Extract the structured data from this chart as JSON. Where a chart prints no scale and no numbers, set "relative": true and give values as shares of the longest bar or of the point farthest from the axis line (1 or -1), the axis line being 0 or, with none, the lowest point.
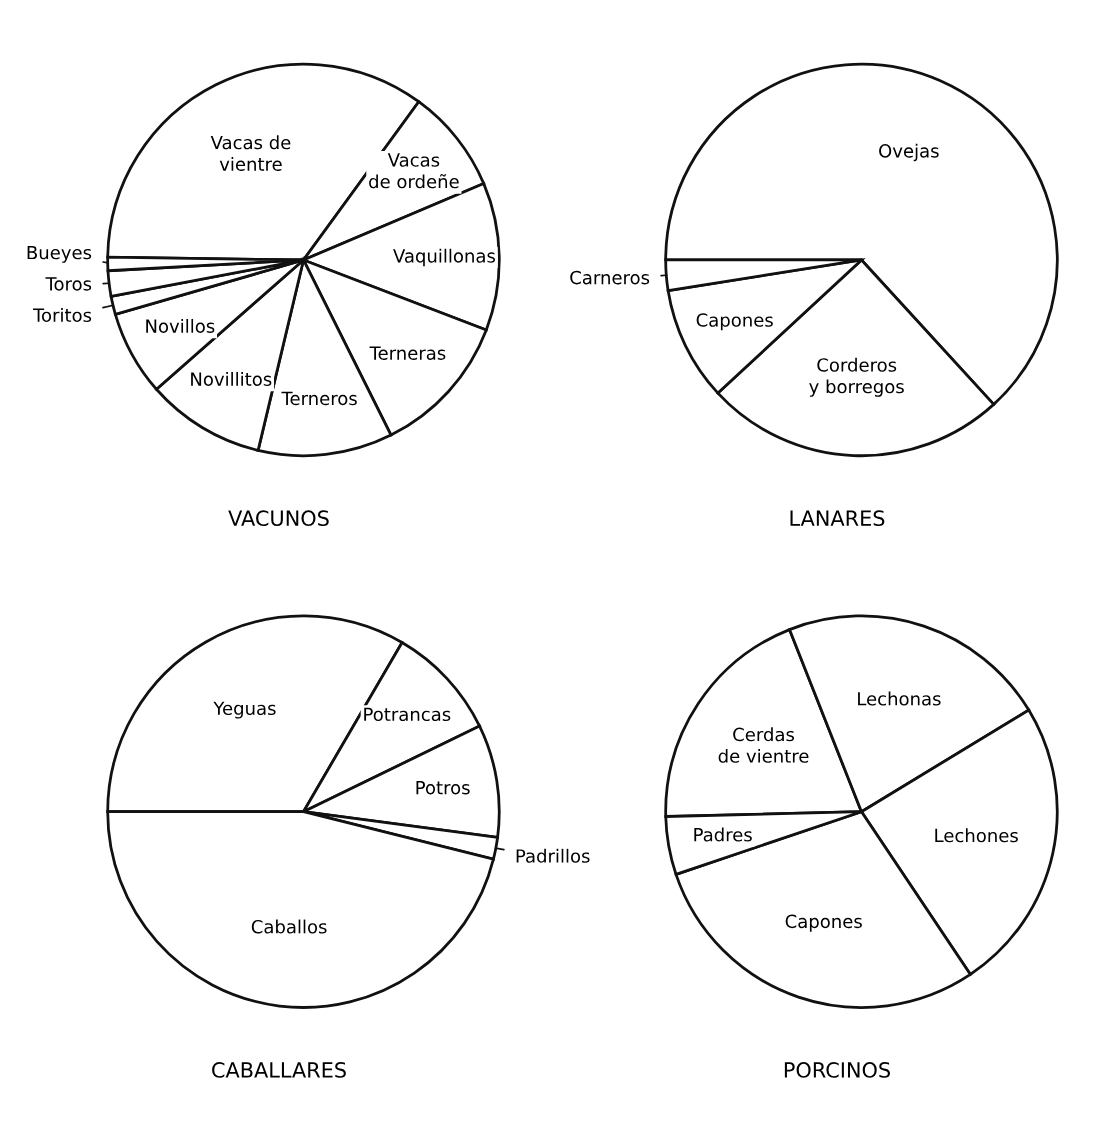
{
  "chart_data": [
    {
      "type": "pie",
      "title": "VACUNOS",
      "categories": [
        "Vacas de\nvientre",
        "Vacas\nde ordeñe",
        "Vaquillonas",
        "Terneras",
        "Terneros",
        "Novillitos",
        "Novillos",
        "Toritos",
        "Toros",
        "Bueyes"
      ],
      "values": [
        34.8,
        8.6,
        12.2,
        11.8,
        11.1,
        9.8,
        7.0,
        1.5,
        2.1,
        1.1
      ],
      "colors": [
        "#ffffff",
        "#ffffff",
        "#ffffff",
        "#ffffff",
        "#ffffff",
        "#ffffff",
        "#ffffff",
        "#ffffff",
        "#ffffff",
        "#ffffff"
      ],
      "relative": true
    },
    {
      "type": "pie",
      "title": "LANARES",
      "categories": [
        "Ovejas",
        "Corderos\ny borregos",
        "Capones",
        "Carneros"
      ],
      "values": [
        63.2,
        24.9,
        9.4,
        2.5
      ],
      "colors": [
        "#ffffff",
        "#ffffff",
        "#ffffff",
        "#ffffff"
      ],
      "relative": true
    },
    {
      "type": "pie",
      "title": "CABALLARES",
      "categories": [
        "Yeguas",
        "Potrancas",
        "Potros",
        "Padrillos",
        "Caballos"
      ],
      "values": [
        33.4,
        9.4,
        9.3,
        1.8,
        46.1
      ],
      "colors": [
        "#ffffff",
        "#ffffff",
        "#ffffff",
        "#ffffff",
        "#ffffff"
      ],
      "relative": true
    },
    {
      "type": "pie",
      "title": "PORCINOS",
      "categories": [
        "Cerdas\nde vientre",
        "Lechonas",
        "Lechones",
        "Capones",
        "Padres"
      ],
      "values": [
        19.4,
        22.3,
        24.3,
        29.2,
        4.8
      ],
      "colors": [
        "#ffffff",
        "#ffffff",
        "#ffffff",
        "#ffffff",
        "#ffffff"
      ],
      "relative": true
    }
  ]
}
